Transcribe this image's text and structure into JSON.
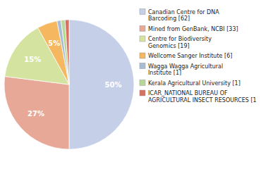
{
  "chart_data": {
    "type": "pie",
    "categories": [
      "Canadian Centre for DNA\nBarcoding [62]",
      "Mined from GenBank, NCBI [33]",
      "Centre for Biodiversity\nGenomics [19]",
      "Wellcome Sanger Institute [6]",
      "Wagga Wagga Agricultural\nInstitute [1]",
      "Kerala Agricultural University [1]",
      "ICAR_NATIONAL BUREAU OF\nAGRICULTURAL INSECT RESOURCES [1"
    ],
    "values": [
      50,
      27,
      15,
      5,
      1,
      1,
      1
    ],
    "value_labels": [
      "50%",
      "27%",
      "15%",
      "5%",
      null,
      null,
      null
    ],
    "colors": [
      "#c5cfe8",
      "#e8a898",
      "#d4e4a0",
      "#f5b860",
      "#a8bcd4",
      "#b8d898",
      "#d87060"
    ],
    "data_labels": true,
    "legend": "right"
  }
}
